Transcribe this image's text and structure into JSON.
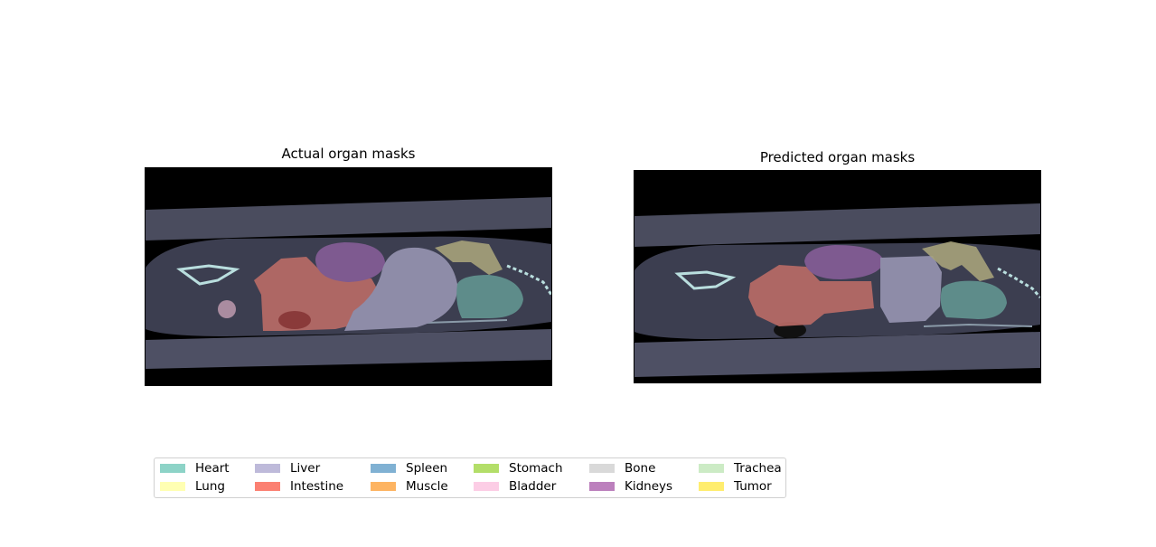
{
  "panels": [
    {
      "title": "Actual organ masks"
    },
    {
      "title": "Predicted organ masks"
    }
  ],
  "legend": {
    "items": [
      {
        "label": "Heart",
        "color": "#8dd3c7"
      },
      {
        "label": "Lung",
        "color": "#ffffb3"
      },
      {
        "label": "Liver",
        "color": "#bebada"
      },
      {
        "label": "Intestine",
        "color": "#fb8072"
      },
      {
        "label": "Spleen",
        "color": "#80b1d3"
      },
      {
        "label": "Muscle",
        "color": "#fdb462"
      },
      {
        "label": "Stomach",
        "color": "#b3de69"
      },
      {
        "label": "Bladder",
        "color": "#fccde5"
      },
      {
        "label": "Bone",
        "color": "#d9d9d9"
      },
      {
        "label": "Kidneys",
        "color": "#bc80bd"
      },
      {
        "label": "Trachea",
        "color": "#ccebc5"
      },
      {
        "label": "Tumor",
        "color": "#ffed6f"
      }
    ]
  }
}
